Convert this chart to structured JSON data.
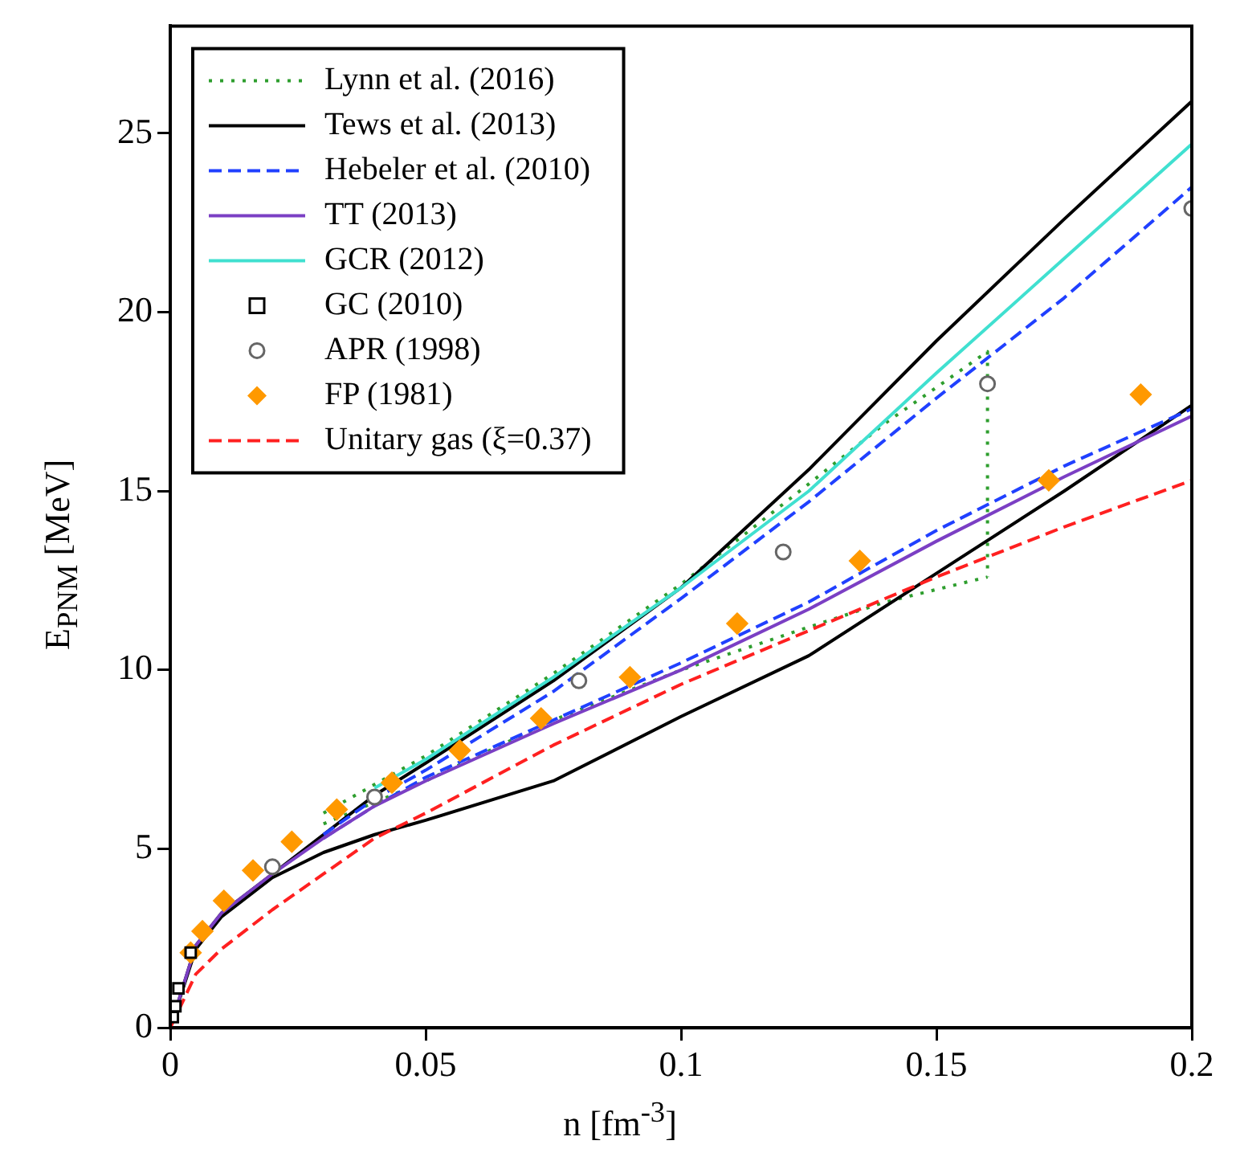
{
  "chart_data": {
    "type": "line",
    "xlabel": "n [fm$^{-3}$]",
    "ylabel": "E$_{PNM}$ [MeV]",
    "xlim": [
      0,
      0.2
    ],
    "xticks": [
      0,
      0.05,
      0.1,
      0.15,
      0.2
    ],
    "ylim": [
      0,
      28
    ],
    "yticks": [
      0,
      5,
      10,
      15,
      20,
      25
    ],
    "grid": false,
    "legend": "top left",
    "series": [
      {
        "name": "Lynn et al. (2016)",
        "color": "#2e9e2e",
        "line_style": "dotted",
        "x": [
          0.03,
          0.05,
          0.075,
          0.1,
          0.125,
          0.14,
          0.16,
          0.16
        ],
        "values": [
          6.0,
          7.6,
          9.9,
          12.4,
          15.2,
          16.9,
          18.9,
          12.6
        ]
      },
      {
        "color": "#2e9e2e",
        "line_style": "dotted",
        "x": [
          0.03,
          0.05,
          0.075,
          0.1,
          0.125,
          0.14,
          0.16
        ],
        "values": [
          5.7,
          6.9,
          8.6,
          10.0,
          11.2,
          11.9,
          12.6
        ]
      },
      {
        "name": "Tews et al. (2013)",
        "color": "#000000",
        "line_style": "solid",
        "x": [
          0,
          0.005,
          0.01,
          0.02,
          0.03,
          0.04,
          0.05,
          0.075,
          0.1,
          0.125,
          0.15,
          0.175,
          0.2
        ],
        "values": [
          0,
          2.3,
          3.2,
          4.3,
          5.4,
          6.5,
          7.4,
          9.7,
          12.3,
          15.6,
          19.2,
          22.6,
          25.9
        ]
      },
      {
        "color": "#000000",
        "line_style": "solid",
        "x": [
          0,
          0.005,
          0.01,
          0.02,
          0.03,
          0.04,
          0.05,
          0.075,
          0.1,
          0.125,
          0.15,
          0.175,
          0.2
        ],
        "values": [
          0,
          2.2,
          3.1,
          4.2,
          4.9,
          5.4,
          5.8,
          6.9,
          8.7,
          10.4,
          12.7,
          15.0,
          17.4
        ]
      },
      {
        "name": "Hebeler et al. (2010)",
        "color": "#2040ff",
        "line_style": "dashed",
        "x": [
          0.03,
          0.04,
          0.05,
          0.075,
          0.1,
          0.125,
          0.15,
          0.175,
          0.2
        ],
        "values": [
          5.4,
          6.4,
          7.2,
          9.4,
          12.0,
          14.7,
          17.6,
          20.4,
          23.5
        ]
      },
      {
        "color": "#2040ff",
        "line_style": "dashed",
        "x": [
          0.03,
          0.04,
          0.05,
          0.075,
          0.1,
          0.125,
          0.15,
          0.175,
          0.2
        ],
        "values": [
          5.3,
          6.2,
          7.0,
          8.6,
          10.2,
          11.9,
          13.9,
          15.7,
          17.3
        ]
      },
      {
        "name": "TT (2013)",
        "color": "#7b3fc4",
        "line_style": "solid",
        "x": [
          0,
          0.005,
          0.01,
          0.02,
          0.03,
          0.04,
          0.05,
          0.075,
          0.1,
          0.125,
          0.15,
          0.175,
          0.2
        ],
        "values": [
          0,
          2.3,
          3.2,
          4.3,
          5.3,
          6.2,
          6.9,
          8.5,
          10.0,
          11.7,
          13.6,
          15.4,
          17.1
        ]
      },
      {
        "name": "GCR (2012)",
        "color": "#40e0d0",
        "line_style": "solid",
        "x": [
          0.04,
          0.05,
          0.075,
          0.1,
          0.125,
          0.15,
          0.175,
          0.2
        ],
        "values": [
          6.7,
          7.5,
          9.8,
          12.3,
          15.0,
          18.3,
          21.5,
          24.7
        ]
      },
      {
        "name": "GC (2010)",
        "color": "#000000",
        "type": "scatter",
        "marker": "square",
        "x": [
          0.0005,
          0.001,
          0.0016,
          0.004
        ],
        "values": [
          0.3,
          0.6,
          1.1,
          2.1
        ]
      },
      {
        "name": "APR (1998)",
        "color": "#666666",
        "type": "scatter",
        "marker": "circle",
        "x": [
          0.02,
          0.04,
          0.08,
          0.12,
          0.16,
          0.2
        ],
        "values": [
          4.5,
          6.45,
          9.7,
          13.3,
          18.0,
          22.9
        ]
      },
      {
        "name": "FP (1981)",
        "color": "#ff9900",
        "type": "scatter",
        "marker": "diamond",
        "x": [
          0.004,
          0.0063,
          0.0105,
          0.0162,
          0.0238,
          0.0326,
          0.0434,
          0.0567,
          0.0726,
          0.09,
          0.111,
          0.135,
          0.172,
          0.19
        ],
        "values": [
          2.1,
          2.7,
          3.55,
          4.4,
          5.2,
          6.1,
          6.85,
          7.75,
          8.65,
          9.8,
          11.3,
          13.05,
          15.3,
          17.7
        ]
      },
      {
        "name": "Unitary gas (ξ=0.37)",
        "color": "#ff2020",
        "line_style": "dashed",
        "x": [
          0,
          0.005,
          0.01,
          0.02,
          0.03,
          0.04,
          0.05,
          0.075,
          0.1,
          0.125,
          0.15,
          0.175,
          0.2
        ],
        "values": [
          0,
          1.5,
          2.2,
          3.3,
          4.3,
          5.3,
          6.0,
          7.9,
          9.6,
          11.1,
          12.6,
          14.0,
          15.3
        ]
      }
    ]
  }
}
